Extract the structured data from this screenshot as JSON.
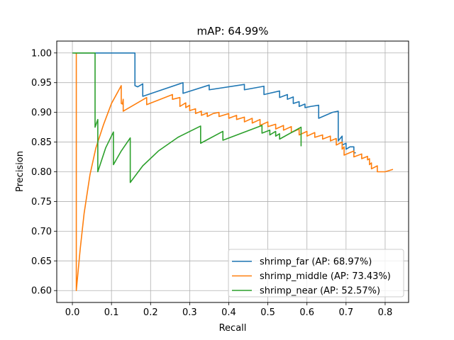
{
  "chart_data": {
    "type": "line",
    "title": "mAP: 64.99%",
    "xlabel": "Recall",
    "ylabel": "Precision",
    "xlim": [
      -0.04,
      0.86
    ],
    "ylim": [
      0.58,
      1.02
    ],
    "xticks": [
      0.0,
      0.1,
      0.2,
      0.3,
      0.4,
      0.5,
      0.6,
      0.7,
      0.8
    ],
    "xtick_labels": [
      "0.0",
      "0.1",
      "0.2",
      "0.3",
      "0.4",
      "0.5",
      "0.6",
      "0.7",
      "0.8"
    ],
    "yticks": [
      0.6,
      0.65,
      0.7,
      0.75,
      0.8,
      0.85,
      0.9,
      0.95,
      1.0
    ],
    "ytick_labels": [
      "0.60",
      "0.65",
      "0.70",
      "0.75",
      "0.80",
      "0.85",
      "0.90",
      "0.95",
      "1.00"
    ],
    "grid": true,
    "legend_position": "bottom-right",
    "series": [
      {
        "name": "shrimp_far (AP: 68.97%)",
        "color": "#1f77b4",
        "points": [
          [
            0.005,
            1.0
          ],
          [
            0.16,
            1.0
          ],
          [
            0.16,
            0.945
          ],
          [
            0.167,
            0.943
          ],
          [
            0.18,
            0.948
          ],
          [
            0.18,
            0.927
          ],
          [
            0.283,
            0.95
          ],
          [
            0.283,
            0.932
          ],
          [
            0.35,
            0.946
          ],
          [
            0.35,
            0.938
          ],
          [
            0.44,
            0.947
          ],
          [
            0.44,
            0.938
          ],
          [
            0.49,
            0.944
          ],
          [
            0.49,
            0.93
          ],
          [
            0.53,
            0.936
          ],
          [
            0.53,
            0.925
          ],
          [
            0.55,
            0.93
          ],
          [
            0.55,
            0.922
          ],
          [
            0.565,
            0.926
          ],
          [
            0.565,
            0.915
          ],
          [
            0.58,
            0.918
          ],
          [
            0.58,
            0.91
          ],
          [
            0.595,
            0.914
          ],
          [
            0.595,
            0.908
          ],
          [
            0.61,
            0.91
          ],
          [
            0.63,
            0.912
          ],
          [
            0.63,
            0.89
          ],
          [
            0.665,
            0.9
          ],
          [
            0.68,
            0.902
          ],
          [
            0.68,
            0.852
          ],
          [
            0.69,
            0.86
          ],
          [
            0.69,
            0.845
          ],
          [
            0.7,
            0.848
          ],
          [
            0.7,
            0.838
          ],
          [
            0.71,
            0.842
          ],
          [
            0.72,
            0.842
          ],
          [
            0.72,
            0.832
          ],
          [
            0.725,
            0.832
          ]
        ]
      },
      {
        "name": "shrimp_middle (AP: 73.43%)",
        "color": "#ff7f0e",
        "points": [
          [
            0.01,
            1.0
          ],
          [
            0.01,
            0.6
          ],
          [
            0.02,
            0.67
          ],
          [
            0.03,
            0.73
          ],
          [
            0.045,
            0.795
          ],
          [
            0.06,
            0.84
          ],
          [
            0.08,
            0.88
          ],
          [
            0.1,
            0.915
          ],
          [
            0.125,
            0.945
          ],
          [
            0.125,
            0.915
          ],
          [
            0.128,
            0.914
          ],
          [
            0.13,
            0.922
          ],
          [
            0.13,
            0.902
          ],
          [
            0.19,
            0.925
          ],
          [
            0.19,
            0.913
          ],
          [
            0.256,
            0.93
          ],
          [
            0.256,
            0.922
          ],
          [
            0.275,
            0.925
          ],
          [
            0.275,
            0.91
          ],
          [
            0.29,
            0.916
          ],
          [
            0.29,
            0.908
          ],
          [
            0.3,
            0.912
          ],
          [
            0.3,
            0.903
          ],
          [
            0.315,
            0.906
          ],
          [
            0.315,
            0.898
          ],
          [
            0.33,
            0.902
          ],
          [
            0.33,
            0.895
          ],
          [
            0.345,
            0.899
          ],
          [
            0.345,
            0.893
          ],
          [
            0.36,
            0.898
          ],
          [
            0.375,
            0.9
          ],
          [
            0.375,
            0.893
          ],
          [
            0.4,
            0.898
          ],
          [
            0.4,
            0.89
          ],
          [
            0.42,
            0.895
          ],
          [
            0.42,
            0.888
          ],
          [
            0.44,
            0.892
          ],
          [
            0.44,
            0.884
          ],
          [
            0.46,
            0.89
          ],
          [
            0.46,
            0.882
          ],
          [
            0.48,
            0.888
          ],
          [
            0.48,
            0.878
          ],
          [
            0.5,
            0.884
          ],
          [
            0.5,
            0.876
          ],
          [
            0.52,
            0.88
          ],
          [
            0.52,
            0.872
          ],
          [
            0.54,
            0.878
          ],
          [
            0.54,
            0.87
          ],
          [
            0.56,
            0.876
          ],
          [
            0.56,
            0.866
          ],
          [
            0.58,
            0.872
          ],
          [
            0.58,
            0.862
          ],
          [
            0.6,
            0.868
          ],
          [
            0.6,
            0.86
          ],
          [
            0.62,
            0.866
          ],
          [
            0.62,
            0.858
          ],
          [
            0.64,
            0.862
          ],
          [
            0.64,
            0.855
          ],
          [
            0.66,
            0.86
          ],
          [
            0.66,
            0.852
          ],
          [
            0.675,
            0.856
          ],
          [
            0.675,
            0.845
          ],
          [
            0.69,
            0.85
          ],
          [
            0.69,
            0.838
          ],
          [
            0.695,
            0.842
          ],
          [
            0.695,
            0.828
          ],
          [
            0.72,
            0.835
          ],
          [
            0.72,
            0.825
          ],
          [
            0.74,
            0.83
          ],
          [
            0.74,
            0.822
          ],
          [
            0.755,
            0.826
          ],
          [
            0.755,
            0.82
          ],
          [
            0.76,
            0.822
          ],
          [
            0.76,
            0.812
          ],
          [
            0.765,
            0.815
          ],
          [
            0.765,
            0.805
          ],
          [
            0.78,
            0.81
          ],
          [
            0.78,
            0.8
          ],
          [
            0.8,
            0.8
          ],
          [
            0.82,
            0.804
          ]
        ]
      },
      {
        "name": "shrimp_near (AP: 52.57%)",
        "color": "#2ca02c",
        "points": [
          [
            0.0,
            1.0
          ],
          [
            0.058,
            1.0
          ],
          [
            0.058,
            0.875
          ],
          [
            0.065,
            0.888
          ],
          [
            0.065,
            0.8
          ],
          [
            0.085,
            0.84
          ],
          [
            0.105,
            0.867
          ],
          [
            0.105,
            0.812
          ],
          [
            0.125,
            0.835
          ],
          [
            0.148,
            0.857
          ],
          [
            0.148,
            0.782
          ],
          [
            0.18,
            0.81
          ],
          [
            0.22,
            0.835
          ],
          [
            0.27,
            0.858
          ],
          [
            0.328,
            0.877
          ],
          [
            0.328,
            0.848
          ],
          [
            0.385,
            0.868
          ],
          [
            0.385,
            0.853
          ],
          [
            0.485,
            0.878
          ],
          [
            0.485,
            0.865
          ],
          [
            0.505,
            0.87
          ],
          [
            0.505,
            0.862
          ],
          [
            0.52,
            0.868
          ],
          [
            0.52,
            0.86
          ],
          [
            0.53,
            0.864
          ],
          [
            0.53,
            0.855
          ],
          [
            0.585,
            0.875
          ],
          [
            0.585,
            0.843
          ]
        ]
      }
    ]
  }
}
